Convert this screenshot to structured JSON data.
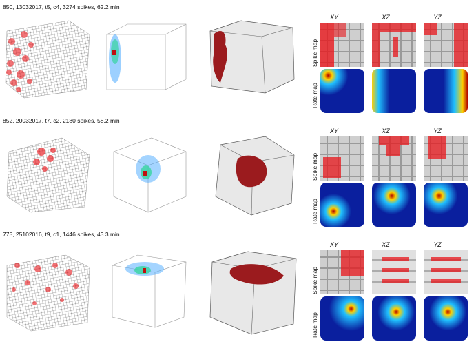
{
  "rows": [
    {
      "title": "850, 13032017, t5, c4, 3274 spikes, 62.2 min",
      "maps": [
        {
          "plane": "XY",
          "spike_density": "left-edge",
          "rate_peak": [
            0.18,
            0.15
          ]
        },
        {
          "plane": "XZ",
          "spike_density": "top-band",
          "rate_peak": [
            0.12,
            0.5
          ]
        },
        {
          "plane": "YZ",
          "spike_density": "top-right",
          "rate_peak": [
            0.9,
            0.25
          ]
        }
      ]
    },
    {
      "title": "852, 20032017, t7, c2, 2180 spikes, 58.2 min",
      "maps": [
        {
          "plane": "XY",
          "spike_density": "lower-left",
          "rate_peak": [
            0.3,
            0.65
          ]
        },
        {
          "plane": "XZ",
          "spike_density": "upper-middle",
          "rate_peak": [
            0.45,
            0.3
          ]
        },
        {
          "plane": "YZ",
          "spike_density": "upper-left",
          "rate_peak": [
            0.35,
            0.3
          ]
        }
      ]
    },
    {
      "title": "775, 25102016, t9, c1, 1446 spikes, 43.3 min",
      "maps": [
        {
          "plane": "XY",
          "spike_density": "top-right",
          "rate_peak": [
            0.7,
            0.28
          ]
        },
        {
          "plane": "XZ",
          "spike_density": "horizontal-bands",
          "rate_peak": [
            0.55,
            0.35
          ]
        },
        {
          "plane": "YZ",
          "spike_density": "horizontal-bands",
          "rate_peak": [
            0.55,
            0.35
          ]
        }
      ]
    }
  ],
  "labels": {
    "spike_map": "Spike map",
    "rate_map": "Rate map"
  },
  "colors": {
    "spike": "#e8161b",
    "trajectory": "#8c8c8c",
    "field_solid": "#9b1b1e",
    "rate_background": "#0a1f9e"
  }
}
